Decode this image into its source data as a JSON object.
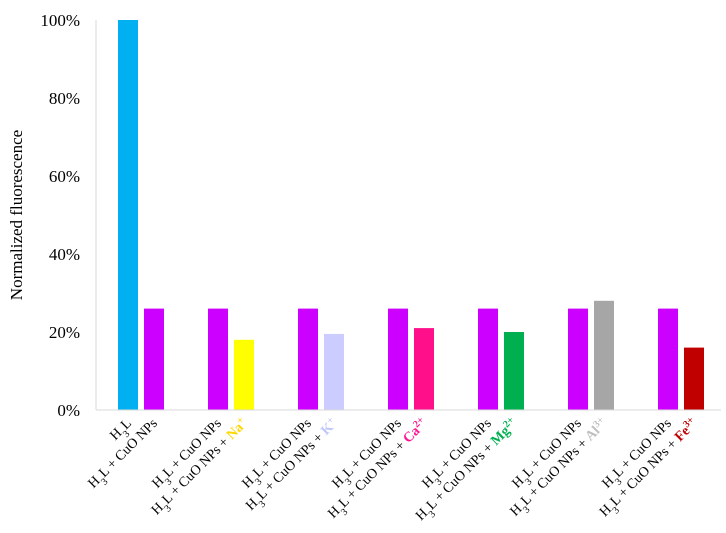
{
  "chart_data": {
    "type": "bar",
    "ylabel": "Normalized fluorescence",
    "ylim": [
      0,
      100
    ],
    "yticks": [
      "0%",
      "20%",
      "40%",
      "60%",
      "80%",
      "100%"
    ],
    "grid": false,
    "legend": "none",
    "bars": [
      {
        "label": {
          "parts": [
            {
              "t": "H"
            },
            {
              "t": "3",
              "sub": true
            },
            {
              "t": "L"
            }
          ]
        },
        "value": 100,
        "color": "#00b0f0"
      },
      {
        "label": {
          "parts": [
            {
              "t": "H"
            },
            {
              "t": "3",
              "sub": true
            },
            {
              "t": "L + CuO NPs"
            }
          ]
        },
        "value": 26,
        "color": "#cc00ff"
      },
      {
        "label": {
          "parts": [
            {
              "t": "H"
            },
            {
              "t": "3",
              "sub": true
            },
            {
              "t": "L + CuO NPs"
            }
          ]
        },
        "value": 26,
        "color": "#cc00ff"
      },
      {
        "label": {
          "parts": [
            {
              "t": "H"
            },
            {
              "t": "3",
              "sub": true
            },
            {
              "t": "L + CuO NPs + "
            }
          ],
          "ion": [
            {
              "t": "Na"
            },
            {
              "t": "+",
              "sup": true
            }
          ],
          "ion_color": "#ffd700"
        },
        "value": 18,
        "color": "#ffff00"
      },
      {
        "label": {
          "parts": [
            {
              "t": "H"
            },
            {
              "t": "3",
              "sub": true
            },
            {
              "t": "L + CuO NPs"
            }
          ]
        },
        "value": 26,
        "color": "#cc00ff"
      },
      {
        "label": {
          "parts": [
            {
              "t": "H"
            },
            {
              "t": "3",
              "sub": true
            },
            {
              "t": "L + CuO NPs + "
            }
          ],
          "ion": [
            {
              "t": "K"
            },
            {
              "t": "+",
              "sup": true
            }
          ],
          "ion_color": "#c0c8f8"
        },
        "value": 19.5,
        "color": "#ccccff"
      },
      {
        "label": {
          "parts": [
            {
              "t": "H"
            },
            {
              "t": "3",
              "sub": true
            },
            {
              "t": "L + CuO NPs"
            }
          ]
        },
        "value": 26,
        "color": "#cc00ff"
      },
      {
        "label": {
          "parts": [
            {
              "t": "H"
            },
            {
              "t": "3",
              "sub": true
            },
            {
              "t": "L + CuO NPs + "
            }
          ],
          "ion": [
            {
              "t": "Ca"
            },
            {
              "t": "2+",
              "sup": true
            }
          ],
          "ion_color": "#ff1493"
        },
        "value": 21,
        "color": "#ff0f8a"
      },
      {
        "label": {
          "parts": [
            {
              "t": "H"
            },
            {
              "t": "3",
              "sub": true
            },
            {
              "t": "L + CuO NPs"
            }
          ]
        },
        "value": 26,
        "color": "#cc00ff"
      },
      {
        "label": {
          "parts": [
            {
              "t": "H"
            },
            {
              "t": "3",
              "sub": true
            },
            {
              "t": "L + CuO NPs + "
            }
          ],
          "ion": [
            {
              "t": "Mg"
            },
            {
              "t": "2+",
              "sup": true
            }
          ],
          "ion_color": "#00b050"
        },
        "value": 20,
        "color": "#00b050"
      },
      {
        "label": {
          "parts": [
            {
              "t": "H"
            },
            {
              "t": "3",
              "sub": true
            },
            {
              "t": "L + CuO NPs"
            }
          ]
        },
        "value": 26,
        "color": "#cc00ff"
      },
      {
        "label": {
          "parts": [
            {
              "t": "H"
            },
            {
              "t": "3",
              "sub": true
            },
            {
              "t": "L + CuO NPs + "
            }
          ],
          "ion": [
            {
              "t": "Al"
            },
            {
              "t": "3+",
              "sup": true
            }
          ],
          "ion_color": "#bfbfbf"
        },
        "value": 28,
        "color": "#a6a6a6"
      },
      {
        "label": {
          "parts": [
            {
              "t": "H"
            },
            {
              "t": "3",
              "sub": true
            },
            {
              "t": "L + CuO NPs"
            }
          ]
        },
        "value": 26,
        "color": "#cc00ff"
      },
      {
        "label": {
          "parts": [
            {
              "t": "H"
            },
            {
              "t": "3",
              "sub": true
            },
            {
              "t": "L + CuO NPs + "
            }
          ],
          "ion": [
            {
              "t": "Fe"
            },
            {
              "t": "3+",
              "sup": true
            }
          ],
          "ion_color": "#c00000"
        },
        "value": 16,
        "color": "#c00000"
      }
    ]
  }
}
